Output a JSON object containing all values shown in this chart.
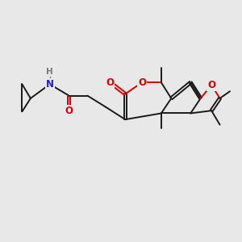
{
  "bg_color": "#e8e8e8",
  "bond_color": "#1a1a1a",
  "bond_width": 1.4,
  "atom_colors": {
    "O": "#dd0000",
    "N": "#2222cc",
    "H": "#777777",
    "C": "#1a1a1a"
  },
  "font_size_atom": 8.5,
  "font_size_h": 7.5
}
